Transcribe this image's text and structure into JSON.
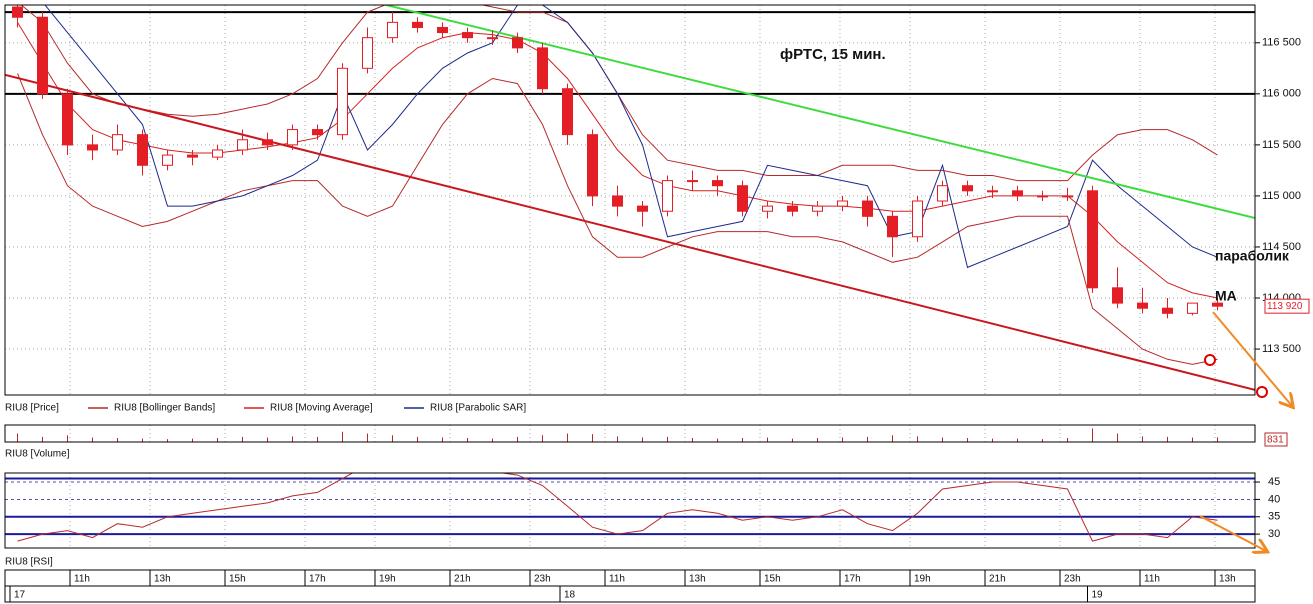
{
  "chart_data": [
    {
      "type": "candlestick",
      "title": "фРТС, 15 мин.",
      "price_name": "RIU8 [Price]",
      "open": [
        116850,
        116750,
        116000,
        115500,
        115450,
        115600,
        115300,
        115400,
        115380,
        115450,
        115550,
        115500,
        115650,
        115600,
        116250,
        116550,
        116700,
        116650,
        116600,
        116550,
        116550,
        116450,
        116050,
        115600,
        115000,
        114900,
        114850,
        115150,
        115150,
        115100,
        114850,
        114900,
        114850,
        114900,
        114950,
        114800,
        114600,
        114950,
        115100,
        115050,
        115050,
        115000,
        115000,
        115050,
        114100,
        113950,
        113900,
        113850,
        113950
      ],
      "high": [
        116870,
        116800,
        116050,
        115600,
        115700,
        115650,
        115450,
        115450,
        115500,
        115650,
        115620,
        115700,
        115700,
        116300,
        116650,
        116800,
        116750,
        116700,
        116650,
        116620,
        116600,
        116500,
        116100,
        115650,
        115100,
        114950,
        115200,
        115250,
        115200,
        115150,
        114950,
        114950,
        114950,
        115000,
        115000,
        114850,
        115000,
        115150,
        115150,
        115100,
        115100,
        115050,
        115080,
        115100,
        114300,
        114100,
        114000,
        113950,
        114000
      ],
      "low": [
        116650,
        115950,
        115400,
        115350,
        115400,
        115200,
        115250,
        115300,
        115350,
        115400,
        115450,
        115450,
        115550,
        115550,
        116200,
        116500,
        116600,
        116550,
        116500,
        116480,
        116400,
        116000,
        115500,
        114900,
        114800,
        114700,
        114800,
        115050,
        115000,
        114800,
        114780,
        114800,
        114800,
        114850,
        114700,
        114400,
        114550,
        114900,
        115000,
        114980,
        114950,
        114950,
        114950,
        114050,
        113900,
        113850,
        113800,
        113830,
        113880
      ],
      "close": [
        116750,
        116000,
        115500,
        115450,
        115600,
        115300,
        115400,
        115380,
        115450,
        115550,
        115500,
        115650,
        115600,
        116250,
        116550,
        116700,
        116650,
        116600,
        116550,
        116550,
        116450,
        116050,
        115600,
        115000,
        114900,
        114850,
        115150,
        115150,
        115100,
        114850,
        114900,
        114850,
        114900,
        114950,
        114800,
        114600,
        114950,
        115100,
        115050,
        115050,
        115000,
        115000,
        115000,
        114100,
        113950,
        113900,
        113850,
        113950,
        113920
      ],
      "color": "#e31e24",
      "overlays": [
        {
          "name": "RIU8 [Bollinger Bands]",
          "color": "#b52a2a",
          "upper": [
            116900,
            116700,
            116300,
            116000,
            115900,
            115850,
            115800,
            115780,
            115800,
            115850,
            115900,
            116000,
            116150,
            116500,
            116800,
            116900,
            116950,
            116950,
            116900,
            116850,
            116800,
            116800,
            116700,
            116400,
            116000,
            115600,
            115350,
            115300,
            115250,
            115250,
            115200,
            115200,
            115200,
            115300,
            115300,
            115300,
            115250,
            115250,
            115200,
            115200,
            115150,
            115150,
            115150,
            115400,
            115600,
            115650,
            115650,
            115550,
            115400
          ],
          "lower": [
            116200,
            115600,
            115100,
            114900,
            114800,
            114700,
            114750,
            114850,
            114950,
            115050,
            115100,
            115150,
            115150,
            114900,
            114800,
            114900,
            115300,
            115700,
            116000,
            116150,
            116100,
            115700,
            115100,
            114600,
            114400,
            114400,
            114500,
            114600,
            114650,
            114650,
            114650,
            114600,
            114600,
            114550,
            114450,
            114350,
            114400,
            114550,
            114700,
            114750,
            114800,
            114800,
            114800,
            113900,
            113700,
            113500,
            113400,
            113350,
            113400
          ]
        },
        {
          "name": "RIU8 [Moving Average]",
          "color": "#d62020",
          "values": [
            116700,
            116300,
            115900,
            115650,
            115550,
            115500,
            115450,
            115420,
            115420,
            115450,
            115480,
            115520,
            115570,
            115750,
            116000,
            116250,
            116450,
            116550,
            116600,
            116580,
            116530,
            116400,
            116150,
            115800,
            115450,
            115200,
            115100,
            115050,
            115050,
            115000,
            114950,
            114920,
            114900,
            114900,
            114880,
            114850,
            114850,
            114900,
            114950,
            115000,
            115000,
            115000,
            115000,
            114800,
            114550,
            114350,
            114150,
            114050,
            114000
          ]
        },
        {
          "name": "RIU8 [Parabolic SAR]",
          "color": "#1c2a8c",
          "values": [
            null,
            116900,
            116600,
            116300,
            116000,
            115700,
            114900,
            114900,
            114950,
            115000,
            115100,
            115200,
            115350,
            116000,
            115450,
            115700,
            116000,
            116250,
            116400,
            116500,
            116870,
            116870,
            116700,
            116400,
            116000,
            115500,
            114600,
            114650,
            114700,
            114750,
            115300,
            115250,
            115200,
            115150,
            115100,
            114600,
            114650,
            115300,
            114300,
            114400,
            114500,
            114600,
            114700,
            115350,
            115100,
            114900,
            114700,
            114500,
            114400
          ]
        }
      ],
      "hlines": [
        116800,
        116000
      ],
      "trendlines": [
        {
          "color": "#3ddc3d",
          "x": [
            14.7,
            49.5
          ],
          "y": [
            116873,
            114784
          ]
        },
        {
          "color": "#c8171e",
          "x": [
            -0.5,
            49.5
          ],
          "y": [
            116186,
            113100
          ]
        }
      ],
      "last_price": {
        "value": 113920,
        "label": "113 920"
      },
      "annotations": [
        "параболик",
        "MA"
      ],
      "xlim": [
        -0.5,
        49.5
      ],
      "ylim": [
        113050,
        116870
      ],
      "yticks": [
        {
          "value": 113500,
          "label": "113 500"
        },
        {
          "value": 114000,
          "label": "114 000"
        },
        {
          "value": 114500,
          "label": "114 500"
        },
        {
          "value": 115000,
          "label": "115 000"
        },
        {
          "value": 115500,
          "label": "115 500"
        },
        {
          "value": 116000,
          "label": "116 000"
        },
        {
          "value": 116500,
          "label": "116 500"
        }
      ],
      "grid": true
    },
    {
      "type": "bar",
      "name": "RIU8 [Volume]",
      "color": "#b52a2a",
      "values": [
        1500,
        900,
        1200,
        800,
        700,
        600,
        500,
        600,
        700,
        900,
        800,
        1000,
        900,
        1800,
        1500,
        1200,
        900,
        800,
        700,
        600,
        900,
        1200,
        1500,
        1400,
        1000,
        800,
        900,
        700,
        600,
        700,
        800,
        600,
        700,
        800,
        900,
        1200,
        1000,
        800,
        700,
        600,
        600,
        500,
        700,
        2400,
        1500,
        1000,
        900,
        800,
        831
      ],
      "ylim": [
        0,
        3000
      ]
    },
    {
      "type": "line",
      "name": "RIU8 [RSI]",
      "color": "#b52a2a",
      "values": [
        28,
        30,
        31,
        29,
        33,
        32,
        35,
        36,
        37,
        38,
        39,
        41,
        42,
        46,
        50,
        52,
        51,
        50,
        49,
        48,
        47,
        44,
        38,
        32,
        30,
        31,
        36,
        37,
        36,
        34,
        35,
        34,
        35,
        37,
        33,
        31,
        36,
        43,
        44,
        45,
        45,
        44,
        43,
        28,
        30,
        30,
        29,
        35,
        34
      ],
      "levels": [
        46,
        35,
        30
      ],
      "level_color": "#1a1aa0",
      "ylim": [
        26,
        47.6
      ],
      "yticks": [
        45,
        40,
        35,
        30
      ],
      "xlim": [
        -0.5,
        49.5
      ],
      "xticks": [
        {
          "value": 2.1,
          "label": "11h"
        },
        {
          "value": 5.3,
          "label": "13h"
        },
        {
          "value": 8.3,
          "label": "15h"
        },
        {
          "value": 11.5,
          "label": "17h"
        },
        {
          "value": 14.3,
          "label": "19h"
        },
        {
          "value": 17.3,
          "label": "21h"
        },
        {
          "value": 20.5,
          "label": "23h"
        },
        {
          "value": 23.5,
          "label": "11h"
        },
        {
          "value": 26.7,
          "label": "13h"
        },
        {
          "value": 29.7,
          "label": "15h"
        },
        {
          "value": 32.9,
          "label": "17h"
        },
        {
          "value": 35.7,
          "label": "19h"
        },
        {
          "value": 38.7,
          "label": "21h"
        },
        {
          "value": 41.7,
          "label": "23h"
        },
        {
          "value": 44.9,
          "label": "11h"
        },
        {
          "value": 47.9,
          "label": "13h"
        }
      ],
      "day_ticks": [
        {
          "value": -0.3,
          "label": "17"
        },
        {
          "value": 21.7,
          "label": "18"
        },
        {
          "value": 42.8,
          "label": "19"
        }
      ]
    }
  ]
}
